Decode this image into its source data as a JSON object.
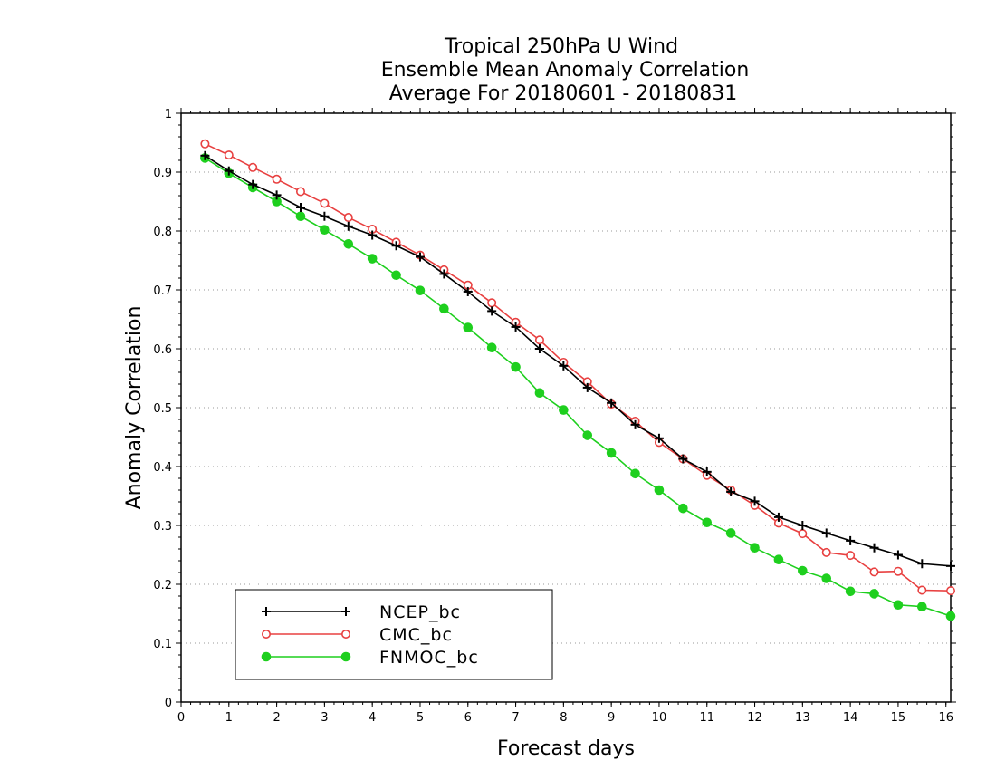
{
  "chart_data": {
    "type": "line",
    "title_lines": [
      "Tropical 250hPa U Wind",
      "Ensemble Mean Anomaly Correlation",
      "Average For 20180601 - 20180831"
    ],
    "xlabel": "Forecast days",
    "ylabel": "Anomaly Correlation",
    "xlim": [
      0,
      16.1
    ],
    "ylim": [
      0,
      1
    ],
    "x_ticks": [
      "0",
      "1",
      "2",
      "3",
      "4",
      "5",
      "6",
      "7",
      "8",
      "9",
      "10",
      "11",
      "12",
      "13",
      "14",
      "15",
      "16"
    ],
    "y_ticks": [
      "0",
      "0.1",
      "0.2",
      "0.3",
      "0.4",
      "0.5",
      "0.6",
      "0.7",
      "0.8",
      "0.9",
      "1"
    ],
    "grid": "horizontal dotted",
    "legend_position": "bottom-left",
    "x": [
      0.5,
      1,
      1.5,
      2,
      2.5,
      3,
      3.5,
      4,
      4.5,
      5,
      5.5,
      6,
      6.5,
      7,
      7.5,
      8,
      8.5,
      9,
      9.5,
      10,
      10.5,
      11,
      11.5,
      12,
      12.5,
      13,
      13.5,
      14,
      14.5,
      15,
      15.5,
      16.1
    ],
    "series": [
      {
        "name": "NCEP_bc",
        "color": "#000000",
        "marker": "plus",
        "values": [
          0.928,
          0.902,
          0.879,
          0.861,
          0.84,
          0.825,
          0.808,
          0.793,
          0.775,
          0.756,
          0.727,
          0.697,
          0.664,
          0.637,
          0.6,
          0.571,
          0.534,
          0.508,
          0.471,
          0.448,
          0.413,
          0.391,
          0.357,
          0.341,
          0.314,
          0.3,
          0.287,
          0.274,
          0.262,
          0.25,
          0.235,
          0.231
        ]
      },
      {
        "name": "CMC_bc",
        "color": "#e84040",
        "marker": "open-circle",
        "values": [
          0.948,
          0.929,
          0.908,
          0.888,
          0.867,
          0.847,
          0.823,
          0.803,
          0.781,
          0.759,
          0.734,
          0.708,
          0.678,
          0.645,
          0.615,
          0.577,
          0.544,
          0.506,
          0.477,
          0.441,
          0.413,
          0.385,
          0.36,
          0.334,
          0.304,
          0.286,
          0.254,
          0.249,
          0.221,
          0.222,
          0.19,
          0.189
        ]
      },
      {
        "name": "FNMOC_bc",
        "color": "#1ecf1e",
        "marker": "filled-circle",
        "values": [
          0.924,
          0.898,
          0.874,
          0.85,
          0.825,
          0.802,
          0.778,
          0.753,
          0.725,
          0.699,
          0.668,
          0.636,
          0.602,
          0.569,
          0.525,
          0.496,
          0.453,
          0.423,
          0.388,
          0.36,
          0.329,
          0.305,
          0.287,
          0.262,
          0.242,
          0.223,
          0.21,
          0.188,
          0.184,
          0.165,
          0.162,
          0.146
        ]
      }
    ]
  }
}
